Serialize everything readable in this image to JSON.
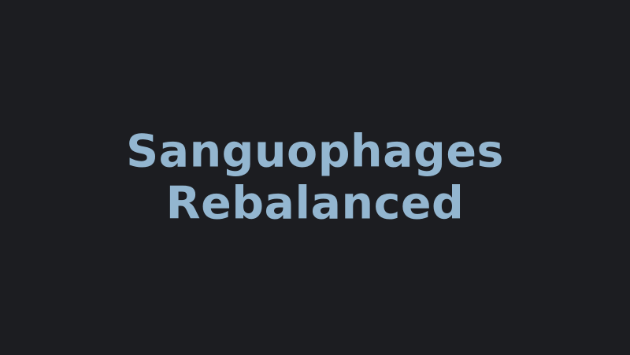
{
  "title": {
    "line1": "Sanguophages",
    "line2": "Rebalanced"
  },
  "colors": {
    "background": "#1c1d21",
    "title_text": "#93b6d0"
  }
}
